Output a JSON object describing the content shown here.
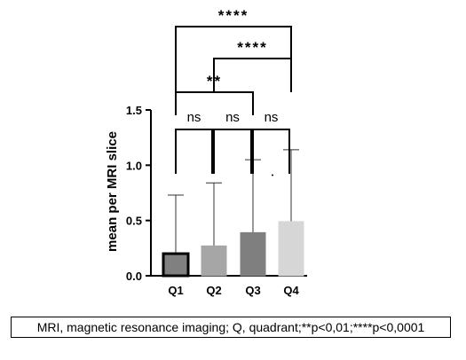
{
  "chart_data": {
    "type": "bar",
    "categories": [
      "Q1",
      "Q2",
      "Q3",
      "Q4"
    ],
    "values": [
      0.2,
      0.27,
      0.39,
      0.49
    ],
    "error_upper": [
      0.73,
      0.84,
      1.05,
      1.14
    ],
    "bar_colors": [
      "#808080",
      "#a6a6a6",
      "#7f7f7f",
      "#d6d6d6"
    ],
    "bar_outline": [
      "#000000",
      "#a6a6a6",
      "#7f7f7f",
      "#d6d6d6"
    ],
    "ylabel": "mean per MRI slice",
    "ylim": [
      0,
      1.5
    ],
    "yticks": [
      0.0,
      0.5,
      1.0,
      1.5
    ],
    "ytick_labels": [
      "0.0",
      "0.5",
      "1.0",
      "1.5"
    ],
    "grid": false,
    "outlier_point": {
      "category": "Q4",
      "value": 0.91
    },
    "significance": [
      {
        "from": "Q1",
        "to": "Q2",
        "label": "ns"
      },
      {
        "from": "Q2",
        "to": "Q3",
        "label": "ns"
      },
      {
        "from": "Q3",
        "to": "Q4",
        "label": "ns"
      },
      {
        "from": "Q1",
        "to": "Q3",
        "label": "**"
      },
      {
        "from": "Q2",
        "to": "Q4",
        "label": "****"
      },
      {
        "from": "Q1",
        "to": "Q4",
        "label": "****"
      }
    ]
  },
  "caption": "MRI, magnetic resonance imaging; Q, quadrant;**p<0,01;****p<0,0001"
}
